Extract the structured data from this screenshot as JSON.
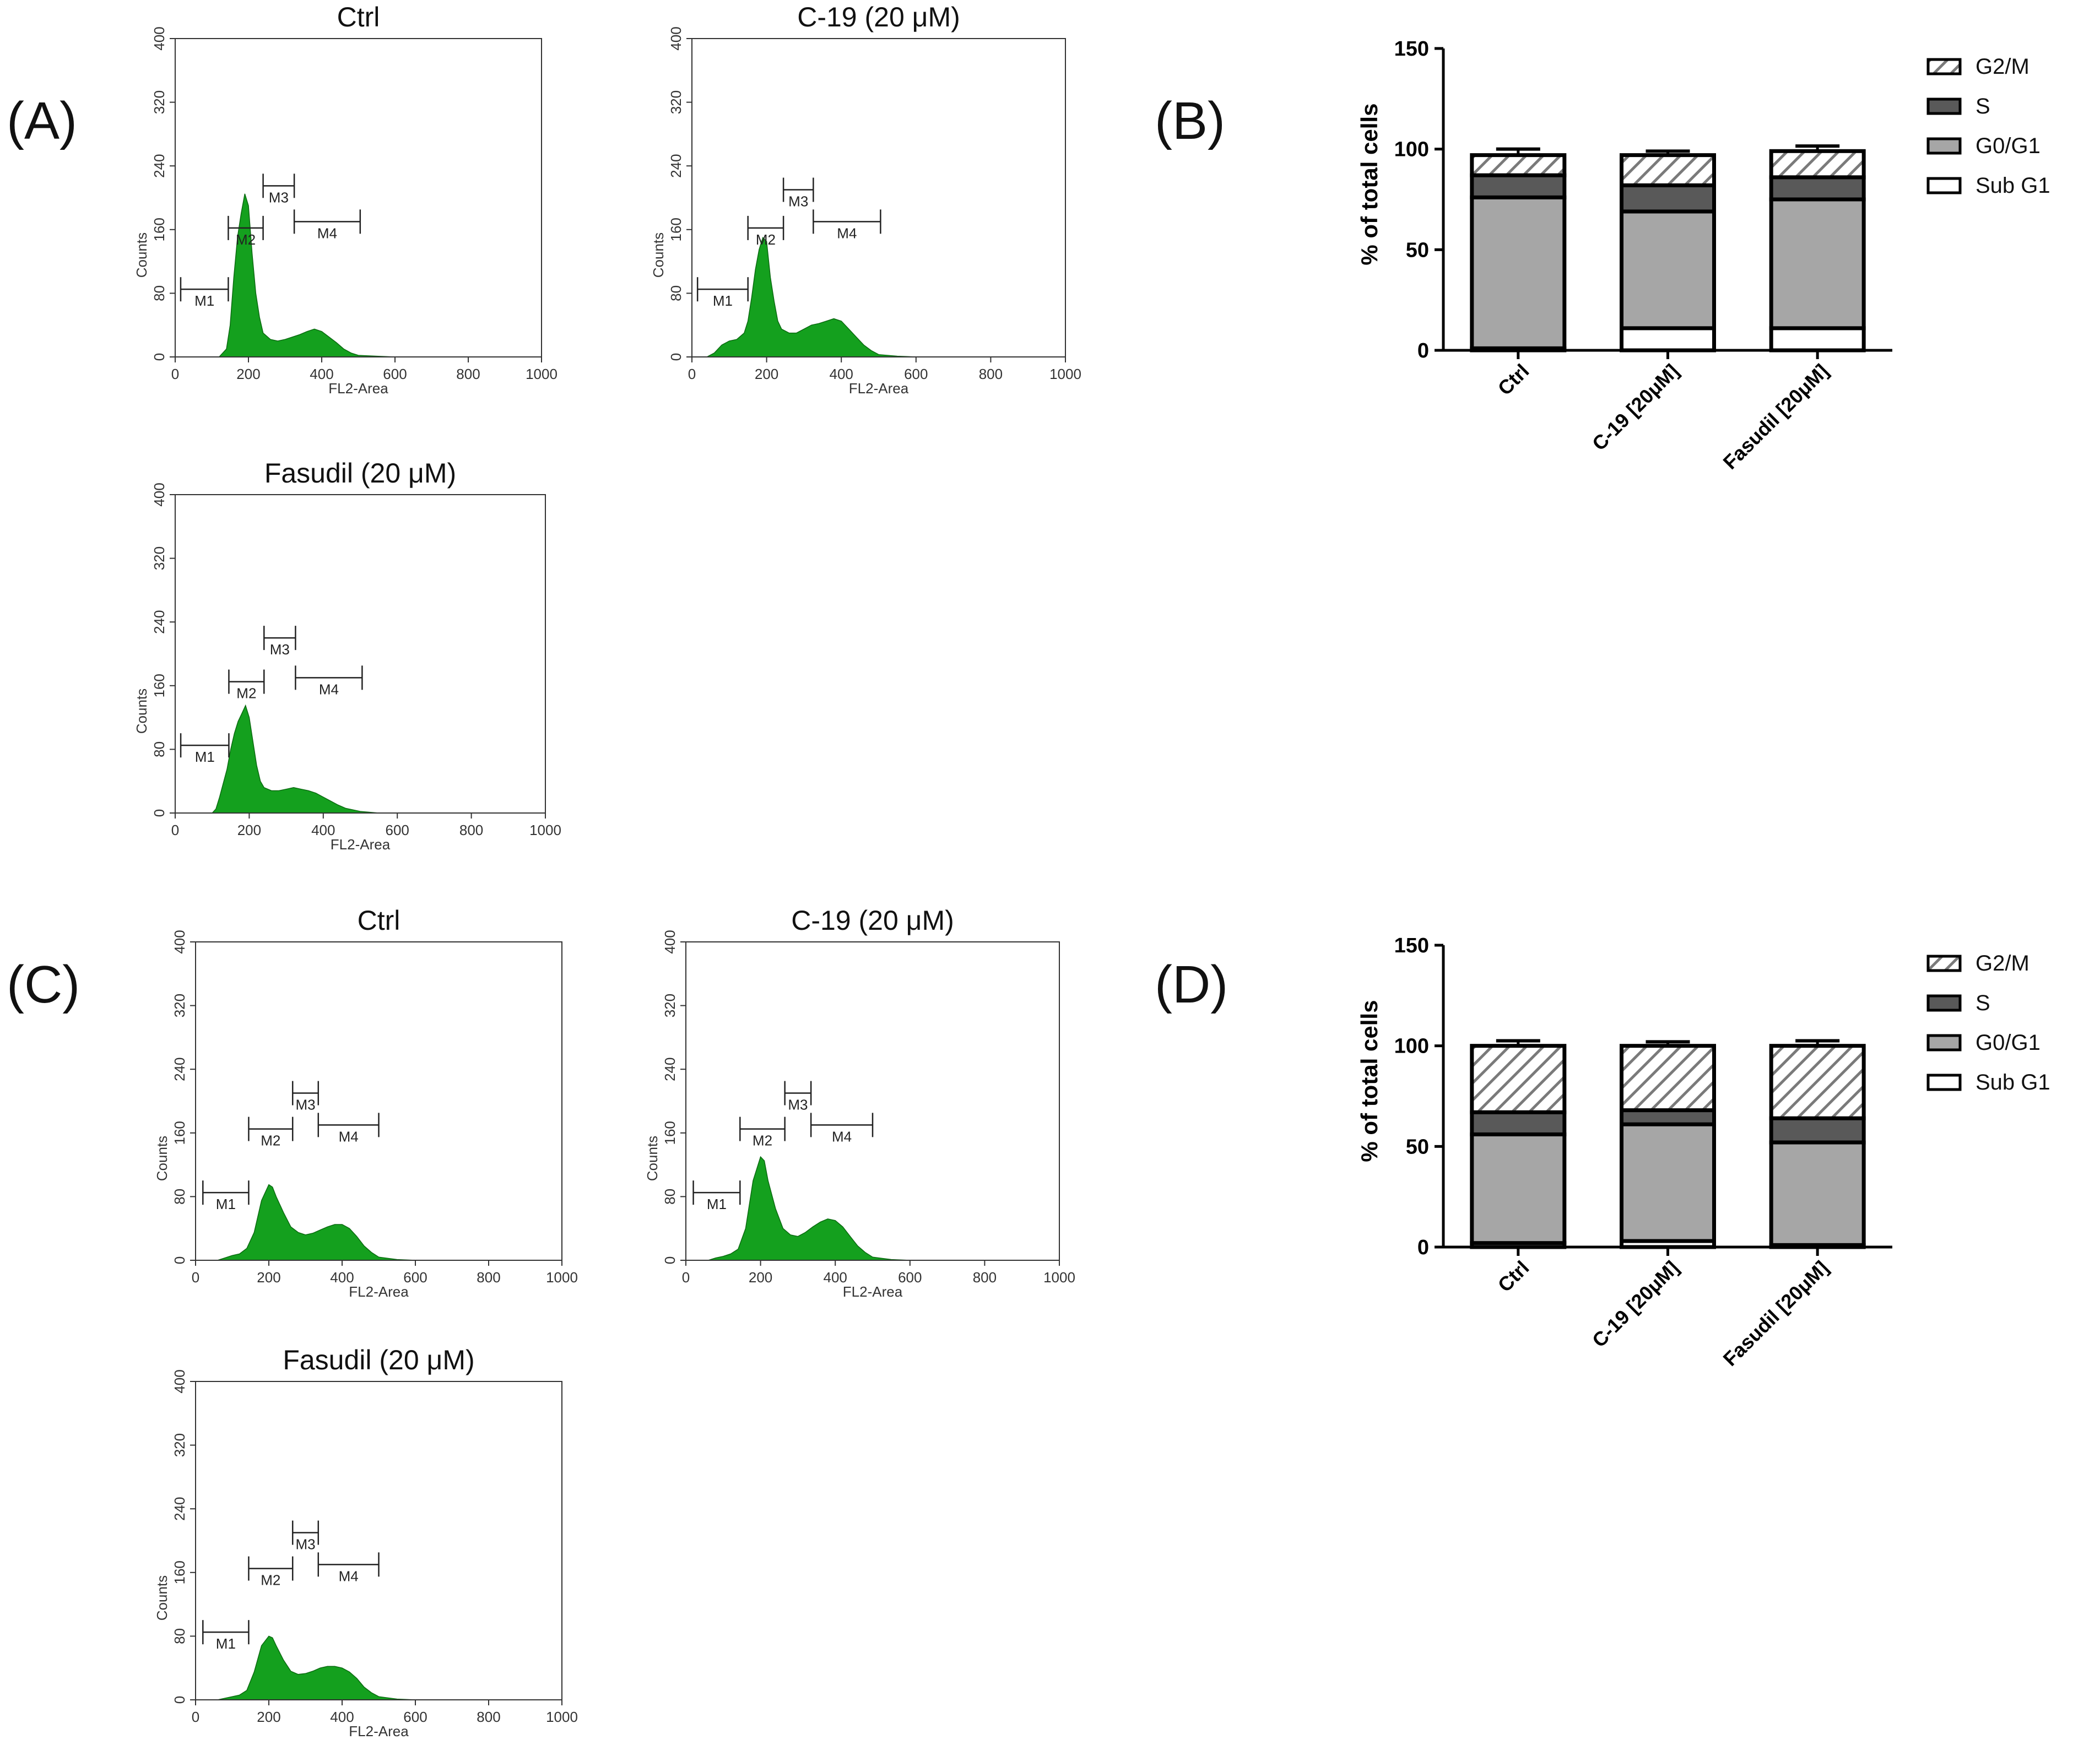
{
  "figure_labels": {
    "A": "(A)",
    "B": "(B)",
    "C": "(C)",
    "D": "(D)"
  },
  "colors": {
    "histogram_fill": "#14a01e",
    "histogram_edge": "#0a6a10",
    "g0g1": "#a6a6a6",
    "s": "#595959",
    "subg1": "#ffffff",
    "g2m_hatch": "#7a7a7a"
  },
  "chart_data": [
    {
      "type": "area",
      "panel": "A",
      "title": "Ctrl",
      "xlabel": "FL2-Area",
      "ylabel": "Counts",
      "xlim": [
        0,
        1000
      ],
      "ylim": [
        0,
        400
      ],
      "xticks": [
        "0",
        "200",
        "400",
        "600",
        "800",
        "1000"
      ],
      "yticks": [
        "0",
        "80",
        "160",
        "240",
        "320",
        "400"
      ],
      "x": [
        0,
        20,
        40,
        60,
        80,
        100,
        120,
        140,
        150,
        160,
        170,
        180,
        190,
        200,
        210,
        220,
        230,
        240,
        260,
        280,
        300,
        320,
        340,
        360,
        380,
        400,
        420,
        440,
        460,
        480,
        500,
        550,
        600,
        700,
        800,
        1000
      ],
      "y": [
        0,
        0,
        0,
        0,
        0,
        0,
        0,
        10,
        40,
        100,
        150,
        180,
        205,
        190,
        130,
        80,
        50,
        30,
        22,
        20,
        22,
        25,
        28,
        32,
        35,
        32,
        25,
        18,
        10,
        5,
        2,
        1,
        0,
        0,
        0,
        0
      ],
      "gates": [
        {
          "label": "M1",
          "start": 15,
          "end": 145,
          "y": 85
        },
        {
          "label": "M2",
          "start": 145,
          "end": 240,
          "y": 162
        },
        {
          "label": "M3",
          "start": 240,
          "end": 325,
          "y": 215
        },
        {
          "label": "M4",
          "start": 325,
          "end": 505,
          "y": 170
        }
      ]
    },
    {
      "type": "area",
      "panel": "A",
      "title": "C-19 (20 μM)",
      "xlabel": "FL2-Area",
      "ylabel": "Counts",
      "xlim": [
        0,
        1000
      ],
      "ylim": [
        0,
        400
      ],
      "xticks": [
        "0",
        "200",
        "400",
        "600",
        "800",
        "1000"
      ],
      "yticks": [
        "0",
        "80",
        "160",
        "240",
        "320",
        "400"
      ],
      "x": [
        0,
        20,
        40,
        60,
        80,
        100,
        120,
        140,
        150,
        160,
        170,
        180,
        190,
        200,
        210,
        220,
        230,
        240,
        260,
        280,
        300,
        320,
        340,
        360,
        380,
        400,
        420,
        440,
        460,
        480,
        500,
        550,
        600,
        700,
        800,
        1000
      ],
      "y": [
        0,
        0,
        0,
        5,
        15,
        20,
        22,
        30,
        45,
        75,
        110,
        135,
        150,
        145,
        100,
        70,
        45,
        35,
        30,
        30,
        35,
        40,
        42,
        45,
        48,
        45,
        35,
        25,
        15,
        8,
        3,
        1,
        0,
        0,
        0,
        0
      ],
      "gates": [
        {
          "label": "M1",
          "start": 15,
          "end": 150,
          "y": 85
        },
        {
          "label": "M2",
          "start": 150,
          "end": 245,
          "y": 162
        },
        {
          "label": "M3",
          "start": 245,
          "end": 325,
          "y": 210
        },
        {
          "label": "M4",
          "start": 325,
          "end": 505,
          "y": 170
        }
      ]
    },
    {
      "type": "area",
      "panel": "A",
      "title": "Fasudil (20 μM)",
      "xlabel": "FL2-Area",
      "ylabel": "Counts",
      "xlim": [
        0,
        1000
      ],
      "ylim": [
        0,
        400
      ],
      "xticks": [
        "0",
        "200",
        "400",
        "600",
        "800",
        "1000"
      ],
      "yticks": [
        "0",
        "80",
        "160",
        "240",
        "320",
        "400"
      ],
      "x": [
        0,
        20,
        40,
        60,
        80,
        100,
        110,
        120,
        140,
        150,
        160,
        170,
        180,
        190,
        200,
        210,
        220,
        230,
        240,
        260,
        280,
        300,
        320,
        340,
        360,
        380,
        400,
        420,
        440,
        460,
        480,
        500,
        550,
        600,
        700,
        800,
        1000
      ],
      "y": [
        0,
        0,
        0,
        0,
        0,
        0,
        5,
        20,
        55,
        80,
        100,
        115,
        125,
        135,
        120,
        90,
        60,
        40,
        32,
        28,
        28,
        30,
        32,
        30,
        28,
        25,
        20,
        15,
        10,
        6,
        4,
        2,
        0,
        0,
        0,
        0,
        0
      ],
      "gates": [
        {
          "label": "M1",
          "start": 15,
          "end": 145,
          "y": 85
        },
        {
          "label": "M2",
          "start": 145,
          "end": 240,
          "y": 165
        },
        {
          "label": "M3",
          "start": 240,
          "end": 325,
          "y": 220
        },
        {
          "label": "M4",
          "start": 325,
          "end": 505,
          "y": 170
        }
      ]
    },
    {
      "type": "bar",
      "stacked": true,
      "panel": "B",
      "ylabel": "% of total cells",
      "ylim": [
        0,
        150
      ],
      "yticks": [
        0,
        50,
        100,
        150
      ],
      "categories": [
        "Ctrl",
        "C-19 [20μM]",
        "Fasudil [20μM]"
      ],
      "series": [
        {
          "name": "Sub G1",
          "values": [
            1,
            11,
            11
          ],
          "errors": [
            1,
            1.5,
            2
          ]
        },
        {
          "name": "G0/G1",
          "values": [
            75,
            58,
            64
          ],
          "errors": [
            2,
            3,
            3
          ]
        },
        {
          "name": "S",
          "values": [
            11,
            13,
            11
          ],
          "errors": [
            1.5,
            1.5,
            2
          ]
        },
        {
          "name": "G2/M",
          "values": [
            10,
            15,
            13
          ],
          "errors": [
            3,
            2,
            2.5
          ]
        }
      ],
      "legend": [
        "G2/M",
        "S",
        "G0/G1",
        "Sub G1"
      ]
    },
    {
      "type": "area",
      "panel": "C",
      "title": "Ctrl",
      "xlabel": "FL2-Area",
      "ylabel": "Counts",
      "xlim": [
        0,
        1000
      ],
      "ylim": [
        0,
        400
      ],
      "xticks": [
        "0",
        "200",
        "400",
        "600",
        "800",
        "1000"
      ],
      "yticks": [
        "0",
        "80",
        "160",
        "240",
        "320",
        "400"
      ],
      "x": [
        0,
        20,
        40,
        60,
        80,
        100,
        120,
        140,
        160,
        180,
        200,
        210,
        220,
        240,
        260,
        280,
        300,
        320,
        340,
        360,
        380,
        400,
        420,
        440,
        460,
        480,
        500,
        550,
        600,
        700,
        800,
        1000
      ],
      "y": [
        0,
        0,
        0,
        0,
        3,
        6,
        8,
        15,
        35,
        75,
        95,
        92,
        80,
        60,
        42,
        35,
        32,
        34,
        38,
        42,
        45,
        45,
        40,
        30,
        18,
        10,
        4,
        1,
        0,
        0,
        0,
        0
      ],
      "gates": [
        {
          "label": "M1",
          "start": 20,
          "end": 145,
          "y": 85
        },
        {
          "label": "M2",
          "start": 145,
          "end": 265,
          "y": 165
        },
        {
          "label": "M3",
          "start": 265,
          "end": 335,
          "y": 210
        },
        {
          "label": "M4",
          "start": 335,
          "end": 500,
          "y": 170
        }
      ]
    },
    {
      "type": "area",
      "panel": "C",
      "title": "C-19 (20 μM)",
      "xlabel": "FL2-Area",
      "ylabel": "Counts",
      "xlim": [
        0,
        1000
      ],
      "ylim": [
        0,
        400
      ],
      "xticks": [
        "0",
        "200",
        "400",
        "600",
        "800",
        "1000"
      ],
      "yticks": [
        "0",
        "80",
        "160",
        "240",
        "320",
        "400"
      ],
      "x": [
        0,
        20,
        40,
        60,
        80,
        100,
        120,
        140,
        160,
        180,
        200,
        210,
        220,
        240,
        260,
        280,
        300,
        320,
        340,
        360,
        380,
        400,
        420,
        440,
        460,
        480,
        500,
        550,
        600,
        700,
        800,
        1000
      ],
      "y": [
        0,
        0,
        0,
        0,
        3,
        5,
        8,
        14,
        40,
        100,
        130,
        125,
        100,
        65,
        40,
        32,
        30,
        35,
        42,
        48,
        52,
        50,
        42,
        30,
        18,
        10,
        4,
        1,
        0,
        0,
        0,
        0
      ],
      "gates": [
        {
          "label": "M1",
          "start": 20,
          "end": 145,
          "y": 85
        },
        {
          "label": "M2",
          "start": 145,
          "end": 265,
          "y": 165
        },
        {
          "label": "M3",
          "start": 265,
          "end": 335,
          "y": 210
        },
        {
          "label": "M4",
          "start": 335,
          "end": 500,
          "y": 170
        }
      ]
    },
    {
      "type": "area",
      "panel": "C",
      "title": "Fasudil (20 μM)",
      "xlabel": "FL2-Area",
      "ylabel": "Counts",
      "xlim": [
        0,
        1000
      ],
      "ylim": [
        0,
        400
      ],
      "xticks": [
        "0",
        "200",
        "400",
        "600",
        "800",
        "1000"
      ],
      "yticks": [
        "0",
        "80",
        "160",
        "240",
        "320",
        "400"
      ],
      "x": [
        0,
        20,
        40,
        60,
        80,
        100,
        120,
        140,
        160,
        180,
        200,
        210,
        220,
        240,
        260,
        280,
        300,
        320,
        340,
        360,
        380,
        400,
        420,
        440,
        460,
        480,
        500,
        550,
        600,
        700,
        800,
        1000
      ],
      "y": [
        0,
        0,
        0,
        0,
        2,
        4,
        6,
        12,
        35,
        68,
        80,
        78,
        68,
        50,
        36,
        32,
        33,
        36,
        40,
        42,
        42,
        40,
        35,
        27,
        16,
        9,
        4,
        1,
        0,
        0,
        0,
        0
      ],
      "gates": [
        {
          "label": "M1",
          "start": 20,
          "end": 145,
          "y": 85
        },
        {
          "label": "M2",
          "start": 145,
          "end": 265,
          "y": 165
        },
        {
          "label": "M3",
          "start": 265,
          "end": 335,
          "y": 210
        },
        {
          "label": "M4",
          "start": 335,
          "end": 500,
          "y": 170
        }
      ]
    },
    {
      "type": "bar",
      "stacked": true,
      "panel": "D",
      "ylabel": "% of total cells",
      "ylim": [
        0,
        150
      ],
      "yticks": [
        0,
        50,
        100,
        150
      ],
      "categories": [
        "Ctrl",
        "C-19 [20μM]",
        "Fasudil [20μM]"
      ],
      "series": [
        {
          "name": "Sub G1",
          "values": [
            2,
            3,
            1
          ],
          "errors": [
            1.5,
            1.5,
            1
          ]
        },
        {
          "name": "G0/G1",
          "values": [
            54,
            58,
            51
          ],
          "errors": [
            2,
            2,
            2
          ]
        },
        {
          "name": "S",
          "values": [
            11,
            7,
            12
          ],
          "errors": [
            2,
            2,
            2
          ]
        },
        {
          "name": "G2/M",
          "values": [
            33,
            32,
            36
          ],
          "errors": [
            2.5,
            2,
            2.5
          ]
        }
      ],
      "legend": [
        "G2/M",
        "S",
        "G0/G1",
        "Sub G1"
      ]
    }
  ]
}
